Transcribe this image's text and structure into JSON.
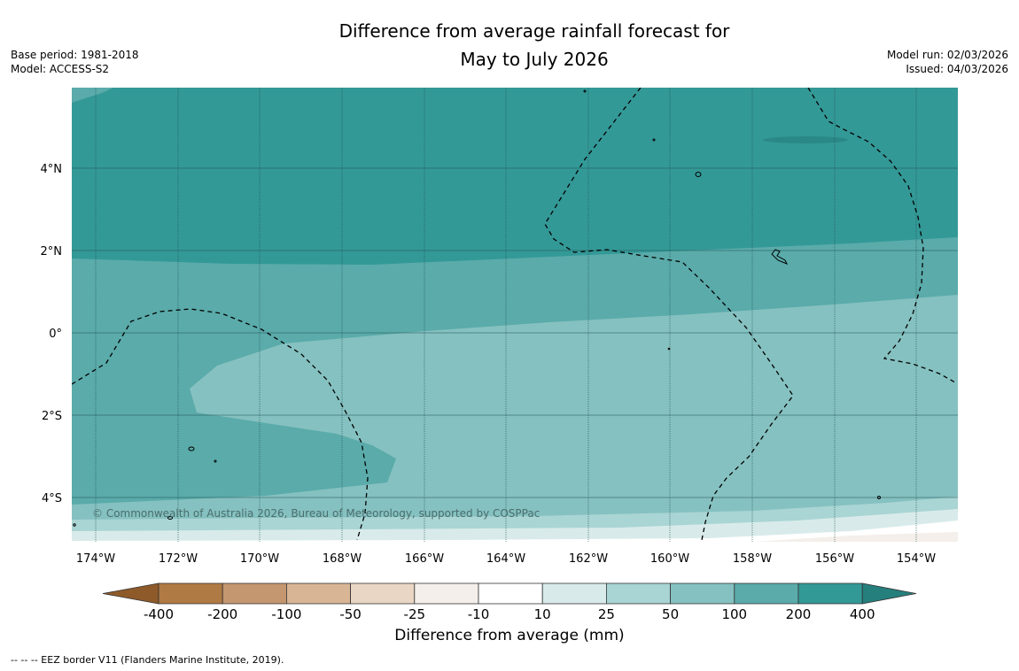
{
  "title": {
    "line1": "Difference from average rainfall forecast for",
    "line2": "May to July 2026"
  },
  "meta_left": {
    "base_period": "Base period: 1981-2018",
    "model": "Model: ACCESS-S2"
  },
  "meta_right": {
    "model_run": "Model run: 02/03/2026",
    "issued": "Issued: 04/03/2026"
  },
  "map": {
    "copyright": "© Commonwealth of Australia 2026, Bureau of Meteorology, supported by COSPPac",
    "lon_ticks": [
      "174°W",
      "172°W",
      "170°W",
      "168°W",
      "166°W",
      "164°W",
      "162°W",
      "160°W",
      "158°W",
      "156°W",
      "154°W"
    ],
    "lat_ticks": [
      "4°N",
      "2°N",
      "0°",
      "2°S",
      "4°S"
    ]
  },
  "colorbar": {
    "ticks": [
      "-400",
      "-200",
      "-100",
      "-50",
      "-25",
      "-10",
      "10",
      "25",
      "50",
      "100",
      "200",
      "400"
    ],
    "label": "Difference from average (mm)",
    "colors": [
      "#8e5a2a",
      "#b07a45",
      "#c49770",
      "#d8b595",
      "#ead6c4",
      "#f4efea",
      "#ffffff",
      "#d8ebea",
      "#a9d5d4",
      "#85c1c0",
      "#5aabaa",
      "#339997",
      "#257f7d"
    ]
  },
  "footnote": "--  --  -- EEZ border V11 (Flanders Marine Institute, 2019)."
}
